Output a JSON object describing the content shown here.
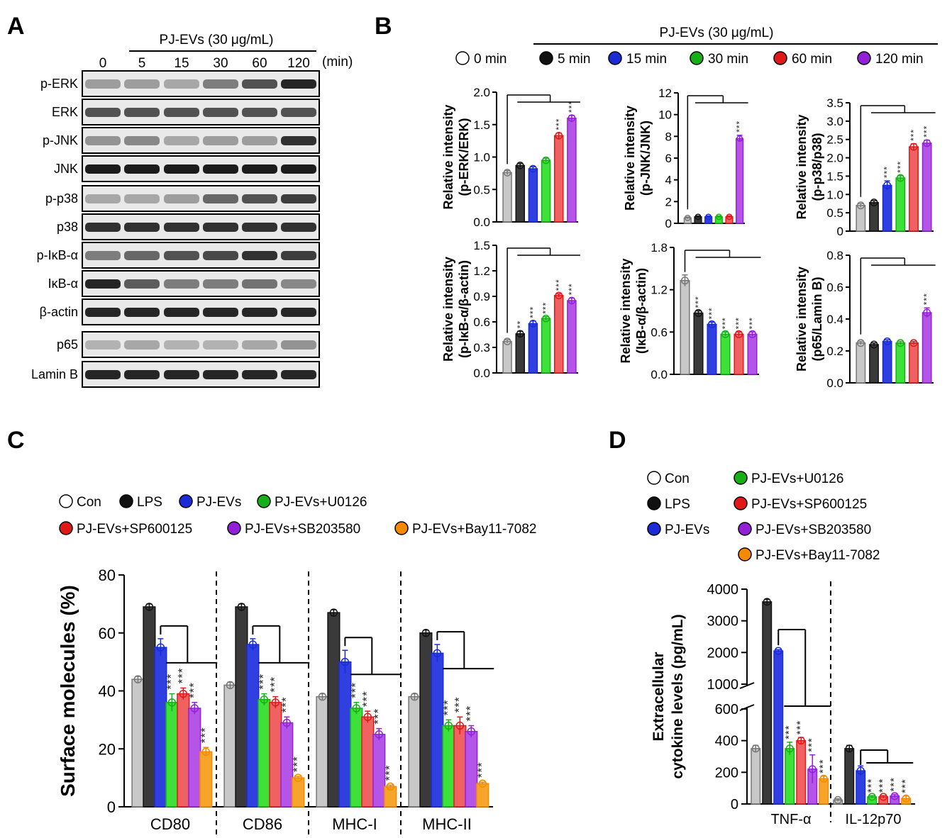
{
  "panels": {
    "A": "A",
    "B": "B",
    "C": "C",
    "D": "D"
  },
  "colors": {
    "s0": "#c8c8c8",
    "s1": "#3a3a3a",
    "s2": "#2f3fe0",
    "s3": "#3ee03a",
    "s4": "#f06262",
    "s5": "#b455e8",
    "s6": "#f7a52a",
    "d0": "#777777",
    "d1": "#111111",
    "d2": "#1b2bd8",
    "d3": "#15b015",
    "d4": "#e01818",
    "d5": "#9320d6",
    "d6": "#f58a00"
  },
  "blot": {
    "treatment": "PJ-EVs (30 μg/mL)",
    "times": [
      "0",
      "5",
      "15",
      "30",
      "60",
      "120"
    ],
    "unit": "(min)",
    "rows": [
      {
        "label": "p-ERK",
        "intensity": [
          0.35,
          0.35,
          0.3,
          0.5,
          0.7,
          0.9
        ]
      },
      {
        "label": "ERK",
        "intensity": [
          0.7,
          0.7,
          0.7,
          0.7,
          0.7,
          0.7
        ]
      },
      {
        "label": "p-JNK",
        "intensity": [
          0.4,
          0.45,
          0.3,
          0.35,
          0.35,
          0.85
        ]
      },
      {
        "label": "JNK",
        "intensity": [
          0.95,
          0.95,
          0.95,
          0.95,
          0.95,
          0.95
        ]
      },
      {
        "label": "p-p38",
        "intensity": [
          0.3,
          0.3,
          0.35,
          0.6,
          0.7,
          0.8
        ]
      },
      {
        "label": "p38",
        "intensity": [
          0.85,
          0.85,
          0.85,
          0.85,
          0.85,
          0.85
        ]
      },
      {
        "label": "p-IκB-α",
        "intensity": [
          0.5,
          0.6,
          0.7,
          0.75,
          0.85,
          0.8
        ]
      },
      {
        "label": "IκB-α",
        "intensity": [
          0.9,
          0.65,
          0.5,
          0.5,
          0.55,
          0.45
        ]
      },
      {
        "label": "β-actin",
        "intensity": [
          0.9,
          0.9,
          0.9,
          0.9,
          0.9,
          0.9
        ]
      },
      {
        "label": "p65",
        "intensity": [
          0.25,
          0.3,
          0.25,
          0.25,
          0.3,
          0.4
        ]
      },
      {
        "label": "Lamin B",
        "intensity": [
          0.9,
          0.9,
          0.9,
          0.9,
          0.9,
          0.9
        ]
      }
    ]
  },
  "legendB": {
    "treatment": "PJ-EVs (30 μg/mL)",
    "entries": [
      "0 min",
      "5 min",
      "15 min",
      "30 min",
      "60 min",
      "120 min"
    ]
  },
  "legendC": [
    "Con",
    "LPS",
    "PJ-EVs",
    "PJ-EVs+U0126",
    "PJ-EVs+SP600125",
    "PJ-EVs+SB203580",
    "PJ-EVs+Bay11-7082"
  ],
  "legendD": [
    "Con",
    "LPS",
    "PJ-EVs",
    "PJ-EVs+U0126",
    "PJ-EVs+SP600125",
    "PJ-EVs+SB203580",
    "PJ-EVs+Bay11-7082"
  ],
  "chart_data": [
    {
      "id": "b1",
      "type": "bar",
      "ylabel": [
        "Relative intensity",
        "(p-ERK/ERK)"
      ],
      "ylim": [
        0,
        2.0
      ],
      "ticks": [
        "0.0",
        "0.5",
        "1.0",
        "1.5",
        "2.0"
      ],
      "values": [
        0.76,
        0.87,
        0.82,
        0.95,
        1.33,
        1.6
      ],
      "errors": [
        0.03,
        0.03,
        0.03,
        0.03,
        0.04,
        0.04
      ],
      "sig": [
        "",
        "",
        "",
        "",
        "***",
        "***"
      ]
    },
    {
      "id": "b2",
      "type": "bar",
      "ylabel": [
        "Relative intensity",
        "(p-JNK/JNK)"
      ],
      "ylim": [
        0,
        12
      ],
      "ticks": [
        "0",
        "2",
        "4",
        "6",
        "8",
        "10",
        "12"
      ],
      "values": [
        0.5,
        0.6,
        0.6,
        0.6,
        0.6,
        7.8
      ],
      "errors": [
        0.08,
        0.08,
        0.08,
        0.08,
        0.08,
        0.3
      ],
      "sig": [
        "",
        "",
        "",
        "",
        "",
        "***"
      ]
    },
    {
      "id": "b3",
      "type": "bar",
      "ylabel": [
        "Relative intensity",
        "(p-p38/p38)"
      ],
      "ylim": [
        0,
        3.5
      ],
      "ticks": [
        "0",
        "0.5",
        "1.0",
        "1.5",
        "2.0",
        "2.5",
        "3.0",
        "3.5"
      ],
      "values": [
        0.7,
        0.78,
        1.25,
        1.45,
        2.3,
        2.4
      ],
      "errors": [
        0.05,
        0.05,
        0.12,
        0.06,
        0.08,
        0.08
      ],
      "sig": [
        "",
        "",
        "***",
        "***",
        "***",
        "***"
      ]
    },
    {
      "id": "b4",
      "type": "bar",
      "ylabel": [
        "Relative intensity",
        "(p-IκB-α/β-actin)"
      ],
      "ylim": [
        0,
        1.5
      ],
      "ticks": [
        "0.0",
        "0.3",
        "0.6",
        "0.9",
        "1.2",
        "1.5"
      ],
      "values": [
        0.37,
        0.46,
        0.58,
        0.64,
        0.91,
        0.85
      ],
      "errors": [
        0.02,
        0.03,
        0.03,
        0.02,
        0.02,
        0.03
      ],
      "sig": [
        "",
        "**",
        "***",
        "***",
        "***",
        "***"
      ]
    },
    {
      "id": "b5",
      "type": "bar",
      "ylabel": [
        "Relative intensity",
        "(IκB-α/β-actin)"
      ],
      "ylim": [
        0,
        1.8
      ],
      "ticks": [
        "0.0",
        "0.6",
        "1.2",
        "1.8"
      ],
      "values": [
        1.33,
        0.87,
        0.71,
        0.57,
        0.57,
        0.57
      ],
      "errors": [
        0.08,
        0.03,
        0.03,
        0.03,
        0.03,
        0.03
      ],
      "sig": [
        "",
        "***",
        "***",
        "***",
        "***",
        "***"
      ]
    },
    {
      "id": "b6",
      "type": "bar",
      "ylabel": [
        "Relative intensity",
        "(p65/Lamin B)"
      ],
      "ylim": [
        0,
        0.8
      ],
      "ticks": [
        "0.0",
        "0.2",
        "0.4",
        "0.6",
        "0.8"
      ],
      "values": [
        0.25,
        0.24,
        0.26,
        0.25,
        0.25,
        0.44
      ],
      "errors": [
        0.01,
        0.01,
        0.01,
        0.01,
        0.01,
        0.03
      ],
      "sig": [
        "",
        "",
        "",
        "",
        "",
        "***"
      ]
    },
    {
      "id": "c",
      "type": "bar",
      "ylabel": "Surface molecules (%)",
      "ylim": [
        0,
        80
      ],
      "ticks": [
        "0",
        "20",
        "40",
        "60",
        "80"
      ],
      "categories": [
        "CD80",
        "CD86",
        "MHC-I",
        "MHC-II"
      ],
      "values": [
        [
          44,
          69,
          55,
          36,
          39,
          34,
          19
        ],
        [
          42,
          69,
          56,
          37,
          36,
          29,
          10
        ],
        [
          38,
          67,
          50,
          34,
          31,
          25,
          7
        ],
        [
          38,
          60,
          53,
          28,
          28,
          26,
          8
        ]
      ],
      "errors": [
        [
          1,
          1,
          3,
          3,
          2,
          2,
          1.5
        ],
        [
          1,
          1,
          2,
          2,
          2,
          2,
          0.5
        ],
        [
          1,
          1,
          4,
          2,
          2,
          2,
          0.5
        ],
        [
          1,
          1,
          3,
          2,
          3,
          2,
          0.5
        ]
      ],
      "sig": [
        "",
        "",
        "",
        "***",
        "***",
        "***",
        "***"
      ]
    },
    {
      "id": "d",
      "type": "bar",
      "ylabel": [
        "Extracellular",
        "cytokine levels (pg/mL)"
      ],
      "ylim_lower": [
        0,
        600
      ],
      "ylim_upper": [
        1000,
        4000
      ],
      "ticks_lower": [
        "0",
        "200",
        "400",
        "600"
      ],
      "ticks_upper": [
        "1000",
        "2000",
        "3000",
        "4000"
      ],
      "categories": [
        "TNF-α",
        "IL-12p70"
      ],
      "values": [
        [
          350,
          3600,
          2050,
          350,
          400,
          220,
          160
        ],
        [
          25,
          350,
          210,
          45,
          45,
          50,
          35
        ]
      ],
      "errors": [
        [
          20,
          80,
          40,
          40,
          20,
          90,
          15
        ],
        [
          8,
          20,
          30,
          8,
          8,
          10,
          15
        ]
      ],
      "sig": [
        "",
        "",
        "",
        "***",
        "***",
        "***",
        "***"
      ]
    }
  ]
}
